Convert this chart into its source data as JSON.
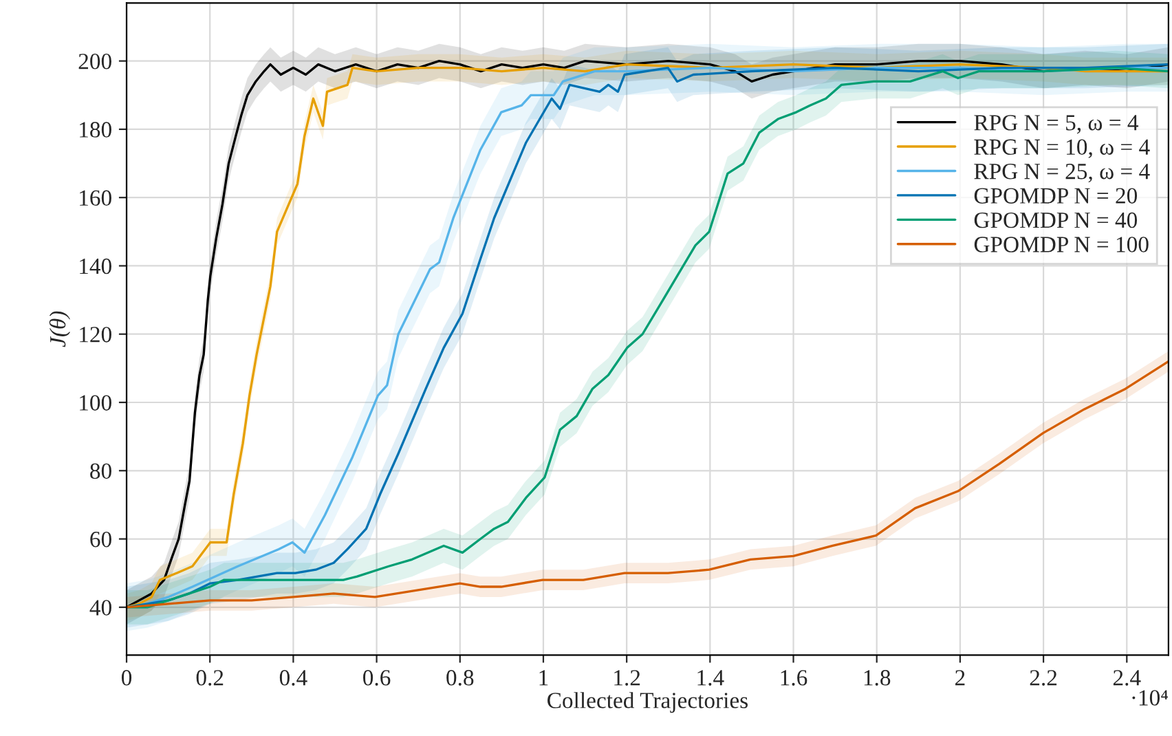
{
  "chart_data": {
    "type": "line",
    "xlabel": "Collected Trajectories",
    "ylabel": "J(θ)",
    "xlim": [
      0,
      2.5
    ],
    "ylim": [
      26,
      217
    ],
    "xticks": [
      0,
      0.2,
      0.4,
      0.6,
      0.8,
      1,
      1.2,
      1.4,
      1.6,
      1.8,
      2,
      2.2,
      2.4
    ],
    "yticks": [
      40,
      60,
      80,
      100,
      120,
      140,
      160,
      180,
      200
    ],
    "grid": true,
    "legend": "right",
    "line_style": "solid",
    "annotations": [
      "·10⁴"
    ],
    "series": [
      {
        "name": "RPG N = 5, ω = 4",
        "color": "#000000",
        "x": [
          0,
          0.03,
          0.06,
          0.09,
          0.11,
          0.125,
          0.14,
          0.151,
          0.164,
          0.175,
          0.185,
          0.195,
          0.201,
          0.215,
          0.23,
          0.245,
          0.262,
          0.275,
          0.29,
          0.31,
          0.33,
          0.345,
          0.37,
          0.4,
          0.43,
          0.46,
          0.5,
          0.55,
          0.6,
          0.65,
          0.7,
          0.75,
          0.8,
          0.85,
          0.9,
          0.95,
          1,
          1.05,
          1.1,
          1.2,
          1.3,
          1.4,
          1.46,
          1.5,
          1.55,
          1.6,
          1.7,
          1.8,
          1.9,
          2,
          2.1,
          2.2,
          2.3,
          2.4,
          2.45,
          2.5
        ],
        "values": [
          40,
          42,
          44,
          48,
          55,
          60,
          70,
          77,
          97,
          108,
          114,
          130,
          137,
          148,
          158,
          170,
          178,
          184,
          190,
          194,
          197,
          199,
          196,
          198,
          196,
          199,
          197,
          199,
          197,
          199,
          198,
          200,
          199,
          197,
          199,
          198,
          199,
          198,
          200,
          199,
          200,
          199,
          197,
          194,
          196,
          197,
          199,
          199,
          200,
          200,
          199,
          197,
          198,
          197,
          198,
          199
        ],
        "lower": [
          35,
          37,
          39,
          43,
          50,
          55,
          65,
          72,
          92,
          103,
          109,
          125,
          132,
          143,
          153,
          165,
          173,
          179,
          185,
          189,
          192,
          194,
          191,
          193,
          191,
          194,
          192,
          194,
          192,
          194,
          193,
          195,
          194,
          192,
          194,
          193,
          194,
          193,
          195,
          194,
          195,
          194,
          192,
          189,
          191,
          192,
          194,
          194,
          195,
          195,
          194,
          192,
          193,
          192,
          193,
          194
        ],
        "upper": [
          45,
          47,
          49,
          53,
          60,
          65,
          75,
          82,
          102,
          113,
          119,
          135,
          142,
          153,
          163,
          175,
          183,
          189,
          195,
          199,
          202,
          204,
          201,
          203,
          201,
          204,
          202,
          204,
          202,
          204,
          203,
          205,
          204,
          202,
          204,
          203,
          204,
          203,
          205,
          204,
          205,
          204,
          202,
          199,
          201,
          202,
          204,
          204,
          205,
          205,
          204,
          202,
          203,
          202,
          203,
          204
        ]
      },
      {
        "name": "RPG N = 10, ω = 4",
        "color": "#e69f00",
        "x": [
          0,
          0.03,
          0.06,
          0.08,
          0.12,
          0.158,
          0.201,
          0.24,
          0.257,
          0.279,
          0.295,
          0.312,
          0.345,
          0.361,
          0.41,
          0.427,
          0.448,
          0.471,
          0.481,
          0.53,
          0.542,
          0.6,
          0.7,
          0.8,
          0.9,
          1,
          1.1,
          1.2,
          1.4,
          1.6,
          1.8,
          2,
          2.2,
          2.3,
          2.4,
          2.5
        ],
        "values": [
          40,
          41,
          43,
          48,
          50,
          52,
          59,
          59,
          73,
          88,
          102,
          114,
          134,
          150,
          164,
          178,
          189,
          181,
          191,
          193,
          198,
          197,
          198,
          198,
          197,
          198,
          197,
          199,
          198,
          199,
          198,
          199,
          198,
          197,
          197,
          197
        ],
        "lower": [
          36,
          37,
          39,
          44,
          46,
          48,
          55,
          55,
          69,
          84,
          98,
          110,
          130,
          146,
          160,
          174,
          185,
          177,
          187,
          189,
          194,
          193,
          194,
          194,
          193,
          194,
          193,
          195,
          194,
          195,
          194,
          195,
          194,
          193,
          193,
          193
        ],
        "upper": [
          44,
          45,
          47,
          52,
          54,
          56,
          63,
          63,
          77,
          92,
          106,
          118,
          138,
          154,
          168,
          182,
          193,
          185,
          195,
          197,
          202,
          201,
          202,
          202,
          201,
          202,
          201,
          203,
          202,
          203,
          202,
          203,
          202,
          201,
          201,
          201
        ]
      },
      {
        "name": "RPG N = 25, ω = 4",
        "color": "#56b4e9",
        "x": [
          0,
          0.05,
          0.1,
          0.158,
          0.267,
          0.365,
          0.398,
          0.427,
          0.476,
          0.542,
          0.603,
          0.625,
          0.652,
          0.728,
          0.75,
          0.784,
          0.849,
          0.899,
          0.948,
          0.97,
          1.025,
          1.047,
          1.123,
          1.2,
          1.4,
          1.6,
          1.8,
          2,
          2.2,
          2.4,
          2.5
        ],
        "values": [
          40,
          41,
          43,
          46,
          52,
          57,
          59,
          56,
          67,
          84,
          102,
          105,
          120,
          139,
          141,
          154,
          174,
          185,
          187,
          190,
          190,
          194,
          197,
          197,
          198,
          197,
          198,
          198,
          197,
          198,
          198
        ],
        "lower": [
          33,
          34,
          36,
          39,
          45,
          50,
          52,
          49,
          60,
          77,
          95,
          98,
          113,
          132,
          134,
          147,
          167,
          178,
          180,
          183,
          183,
          187,
          190,
          190,
          191,
          190,
          191,
          191,
          190,
          191,
          191
        ],
        "upper": [
          47,
          48,
          50,
          53,
          59,
          64,
          66,
          63,
          74,
          91,
          109,
          112,
          127,
          146,
          148,
          161,
          181,
          192,
          194,
          197,
          197,
          201,
          204,
          204,
          205,
          204,
          205,
          205,
          204,
          205,
          205
        ]
      },
      {
        "name": "GPOMDP N = 20",
        "color": "#0072b2",
        "x": [
          0,
          0.05,
          0.1,
          0.15,
          0.201,
          0.267,
          0.361,
          0.405,
          0.454,
          0.497,
          0.53,
          0.575,
          0.608,
          0.652,
          0.718,
          0.761,
          0.806,
          0.849,
          0.882,
          0.958,
          1.02,
          1.04,
          1.063,
          1.135,
          1.156,
          1.179,
          1.195,
          1.299,
          1.321,
          1.36,
          1.5,
          1.7,
          1.9,
          2.1,
          2.3,
          2.5
        ],
        "values": [
          40,
          41,
          42,
          44,
          47,
          48,
          50,
          50,
          51,
          53,
          57,
          63,
          73,
          85,
          104,
          116,
          126,
          142,
          154,
          176,
          189,
          186,
          193,
          191,
          193,
          191,
          196,
          198,
          194,
          196,
          197,
          198,
          197,
          198,
          198,
          199
        ],
        "lower": [
          34,
          35,
          36,
          38,
          41,
          42,
          44,
          44,
          45,
          47,
          51,
          57,
          67,
          79,
          98,
          110,
          120,
          136,
          148,
          170,
          183,
          180,
          187,
          185,
          187,
          185,
          190,
          192,
          188,
          190,
          191,
          192,
          191,
          192,
          192,
          193
        ],
        "upper": [
          46,
          47,
          48,
          50,
          53,
          54,
          56,
          56,
          57,
          59,
          63,
          69,
          79,
          91,
          110,
          122,
          132,
          148,
          160,
          182,
          195,
          192,
          199,
          197,
          199,
          197,
          202,
          204,
          200,
          202,
          203,
          204,
          203,
          204,
          204,
          205
        ]
      },
      {
        "name": "GPOMDP N = 40",
        "color": "#009e73",
        "x": [
          0,
          0.05,
          0.1,
          0.15,
          0.2,
          0.234,
          0.398,
          0.52,
          0.553,
          0.629,
          0.685,
          0.761,
          0.806,
          0.849,
          0.882,
          0.915,
          0.958,
          1.003,
          1.04,
          1.08,
          1.118,
          1.156,
          1.201,
          1.238,
          1.287,
          1.321,
          1.365,
          1.398,
          1.442,
          1.48,
          1.518,
          1.563,
          1.607,
          1.64,
          1.678,
          1.715,
          1.793,
          1.837,
          1.88,
          1.958,
          1.995,
          2.045,
          2.11,
          2.2,
          2.374,
          2.5
        ],
        "values": [
          40,
          40,
          42,
          44,
          46,
          48,
          48,
          48,
          49,
          52,
          54,
          58,
          56,
          60,
          63,
          65,
          72,
          78,
          92,
          96,
          104,
          108,
          116,
          120,
          130,
          137,
          146,
          150,
          167,
          170,
          179,
          183,
          185,
          187,
          189,
          193,
          194,
          194,
          194,
          197,
          195,
          197,
          197,
          197,
          198,
          197
        ],
        "lower": [
          35,
          35,
          37,
          39,
          41,
          43,
          43,
          43,
          44,
          47,
          49,
          53,
          51,
          55,
          58,
          60,
          67,
          73,
          87,
          91,
          99,
          103,
          111,
          115,
          125,
          132,
          141,
          145,
          162,
          165,
          174,
          178,
          180,
          182,
          184,
          188,
          189,
          189,
          189,
          192,
          190,
          192,
          192,
          192,
          193,
          192
        ],
        "upper": [
          45,
          45,
          47,
          49,
          51,
          53,
          53,
          53,
          54,
          57,
          59,
          63,
          61,
          65,
          68,
          70,
          77,
          83,
          97,
          101,
          109,
          113,
          121,
          125,
          135,
          142,
          151,
          155,
          172,
          175,
          184,
          188,
          190,
          192,
          194,
          198,
          199,
          199,
          199,
          202,
          200,
          202,
          202,
          202,
          203,
          202
        ]
      },
      {
        "name": "GPOMDP N = 100",
        "color": "#d55e00",
        "x": [
          0,
          0.1,
          0.2,
          0.3,
          0.4,
          0.497,
          0.596,
          0.8,
          0.849,
          0.899,
          0.998,
          1.096,
          1.195,
          1.299,
          1.398,
          1.497,
          1.6,
          1.694,
          1.798,
          1.892,
          1.995,
          2.094,
          2.199,
          2.298,
          2.397,
          2.5
        ],
        "values": [
          40,
          41,
          42,
          42,
          43,
          44,
          43,
          47,
          46,
          46,
          48,
          48,
          50,
          50,
          51,
          54,
          55,
          58,
          61,
          69,
          74,
          82,
          91,
          98,
          104,
          112
        ],
        "lower": [
          37,
          38,
          39,
          39,
          40,
          41,
          40,
          44,
          43,
          43,
          45,
          45,
          47,
          47,
          48,
          51,
          52,
          55,
          58,
          66,
          71,
          79,
          88,
          95,
          101,
          109
        ],
        "upper": [
          43,
          44,
          45,
          45,
          46,
          47,
          46,
          50,
          49,
          49,
          51,
          51,
          53,
          53,
          54,
          57,
          58,
          61,
          64,
          72,
          77,
          85,
          94,
          101,
          107,
          115
        ]
      }
    ]
  }
}
